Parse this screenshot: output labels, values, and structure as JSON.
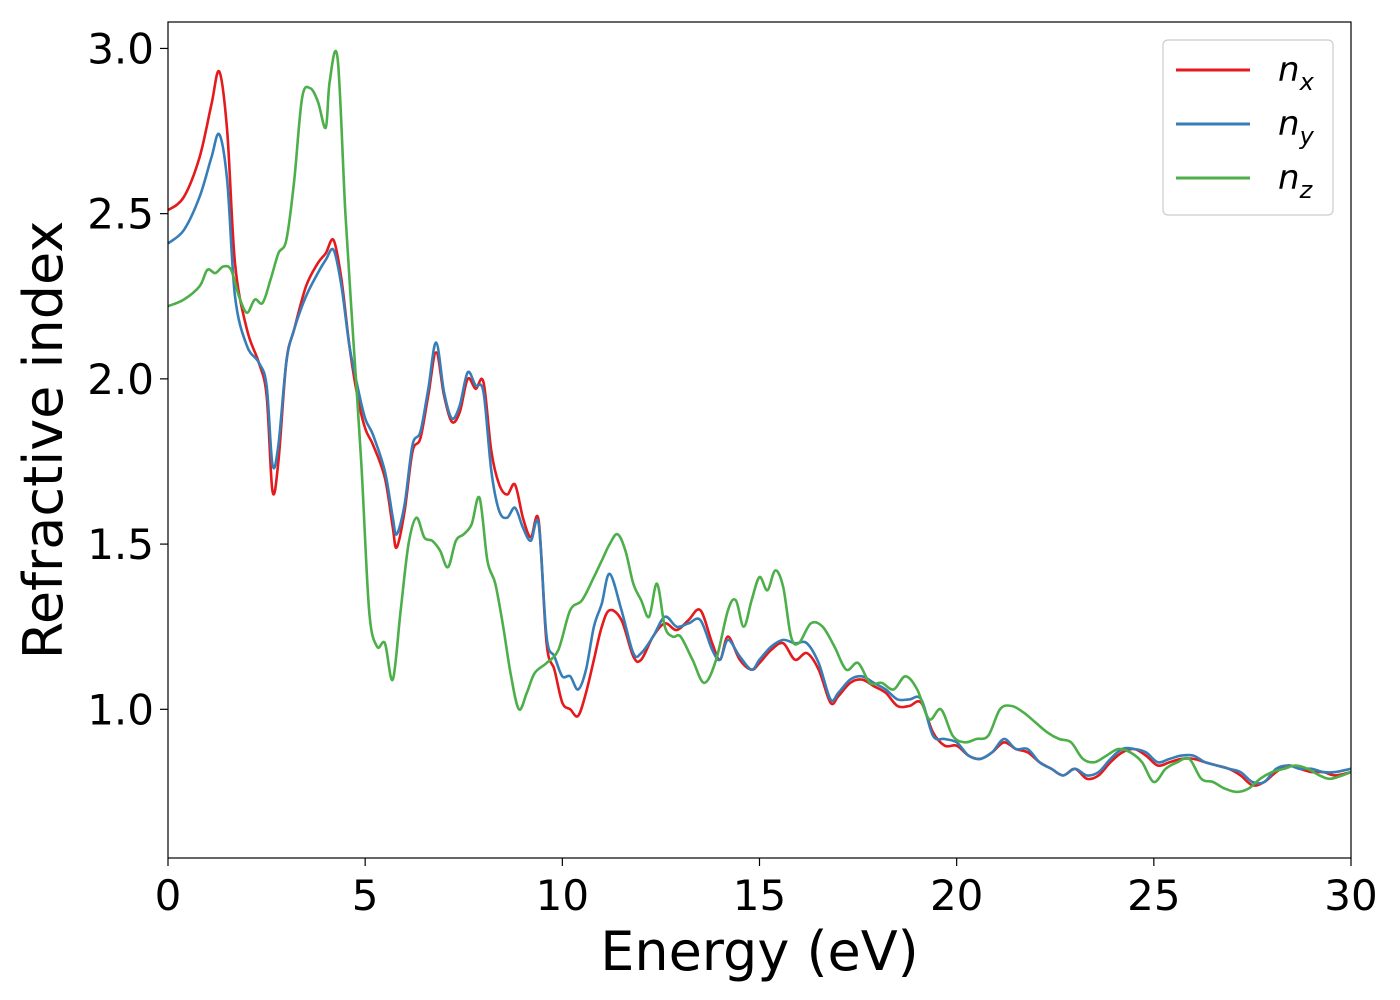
{
  "chart_data": {
    "type": "line",
    "xlabel": "Energy (eV)",
    "ylabel": "Refractive index",
    "xlim": [
      0,
      30
    ],
    "ylim": [
      0.55,
      3.08
    ],
    "xticks": [
      0,
      5,
      10,
      15,
      20,
      25,
      30
    ],
    "xtick_labels": [
      "0",
      "5",
      "10",
      "15",
      "20",
      "25",
      "30"
    ],
    "yticks": [
      1.0,
      1.5,
      2.0,
      2.5,
      3.0
    ],
    "ytick_labels": [
      "1.0",
      "1.5",
      "2.0",
      "2.5",
      "3.0"
    ],
    "grid": false,
    "legend_position": "top-right",
    "series": [
      {
        "name": "n_x",
        "label_base": "n",
        "label_sub": "x",
        "color": "#e41a1c",
        "x": [
          0,
          0.4,
          0.8,
          1.1,
          1.3,
          1.5,
          1.7,
          2.0,
          2.3,
          2.5,
          2.65,
          2.8,
          3.0,
          3.2,
          3.5,
          3.8,
          4.0,
          4.2,
          4.4,
          4.6,
          4.8,
          5.0,
          5.2,
          5.5,
          5.7,
          5.8,
          6.0,
          6.2,
          6.4,
          6.6,
          6.8,
          7.0,
          7.2,
          7.4,
          7.6,
          7.8,
          8.0,
          8.2,
          8.4,
          8.6,
          8.8,
          9.0,
          9.2,
          9.4,
          9.6,
          9.8,
          10.0,
          10.2,
          10.4,
          10.6,
          10.8,
          11.0,
          11.2,
          11.5,
          11.8,
          12.0,
          12.3,
          12.6,
          12.9,
          13.2,
          13.5,
          13.8,
          14.0,
          14.2,
          14.5,
          14.8,
          15.0,
          15.3,
          15.6,
          15.9,
          16.2,
          16.5,
          16.8,
          17.0,
          17.3,
          17.6,
          17.9,
          18.2,
          18.5,
          18.8,
          19.1,
          19.4,
          19.7,
          20.0,
          20.3,
          20.6,
          20.9,
          21.2,
          21.5,
          21.8,
          22.1,
          22.4,
          22.7,
          23.0,
          23.3,
          23.6,
          23.9,
          24.2,
          24.5,
          24.8,
          25.1,
          25.4,
          25.7,
          26.0,
          26.3,
          26.6,
          26.9,
          27.2,
          27.5,
          27.8,
          28.1,
          28.4,
          28.7,
          29.0,
          29.3,
          29.6,
          30.0
        ],
        "y": [
          2.51,
          2.55,
          2.67,
          2.83,
          2.93,
          2.75,
          2.35,
          2.15,
          2.05,
          1.95,
          1.66,
          1.75,
          2.05,
          2.15,
          2.28,
          2.35,
          2.38,
          2.42,
          2.3,
          2.1,
          1.95,
          1.85,
          1.8,
          1.7,
          1.55,
          1.49,
          1.6,
          1.78,
          1.82,
          1.95,
          2.08,
          1.95,
          1.87,
          1.9,
          2.0,
          1.97,
          1.99,
          1.78,
          1.68,
          1.65,
          1.68,
          1.58,
          1.52,
          1.57,
          1.2,
          1.12,
          1.02,
          1.0,
          0.98,
          1.05,
          1.15,
          1.25,
          1.3,
          1.27,
          1.16,
          1.15,
          1.22,
          1.26,
          1.24,
          1.27,
          1.3,
          1.2,
          1.15,
          1.22,
          1.15,
          1.12,
          1.14,
          1.18,
          1.2,
          1.15,
          1.17,
          1.12,
          1.02,
          1.04,
          1.08,
          1.09,
          1.07,
          1.05,
          1.01,
          1.01,
          1.02,
          0.93,
          0.89,
          0.89,
          0.86,
          0.85,
          0.87,
          0.9,
          0.88,
          0.87,
          0.84,
          0.82,
          0.8,
          0.82,
          0.79,
          0.8,
          0.84,
          0.87,
          0.88,
          0.86,
          0.83,
          0.84,
          0.85,
          0.85,
          0.84,
          0.83,
          0.82,
          0.8,
          0.77,
          0.78,
          0.81,
          0.83,
          0.82,
          0.81,
          0.81,
          0.8,
          0.81
        ]
      },
      {
        "name": "n_y",
        "label_base": "n",
        "label_sub": "y",
        "color": "#377eb8",
        "x": [
          0,
          0.4,
          0.8,
          1.1,
          1.3,
          1.5,
          1.7,
          2.0,
          2.3,
          2.5,
          2.65,
          2.8,
          3.0,
          3.2,
          3.5,
          3.8,
          4.0,
          4.2,
          4.4,
          4.6,
          4.8,
          5.0,
          5.2,
          5.5,
          5.7,
          5.8,
          6.0,
          6.2,
          6.4,
          6.6,
          6.8,
          7.0,
          7.2,
          7.4,
          7.6,
          7.8,
          8.0,
          8.2,
          8.4,
          8.6,
          8.8,
          9.0,
          9.2,
          9.4,
          9.6,
          9.8,
          10.0,
          10.2,
          10.4,
          10.6,
          10.8,
          11.0,
          11.2,
          11.5,
          11.8,
          12.0,
          12.3,
          12.6,
          12.9,
          13.2,
          13.5,
          13.8,
          14.0,
          14.2,
          14.5,
          14.8,
          15.0,
          15.3,
          15.6,
          15.9,
          16.2,
          16.5,
          16.8,
          17.0,
          17.3,
          17.6,
          17.9,
          18.2,
          18.5,
          18.8,
          19.1,
          19.4,
          19.7,
          20.0,
          20.3,
          20.6,
          20.9,
          21.2,
          21.5,
          21.8,
          22.1,
          22.4,
          22.7,
          23.0,
          23.3,
          23.6,
          23.9,
          24.2,
          24.5,
          24.8,
          25.1,
          25.4,
          25.7,
          26.0,
          26.3,
          26.6,
          26.9,
          27.2,
          27.5,
          27.8,
          28.1,
          28.4,
          28.7,
          29.0,
          29.3,
          29.6,
          30.0
        ],
        "y": [
          2.41,
          2.45,
          2.55,
          2.67,
          2.74,
          2.6,
          2.25,
          2.1,
          2.05,
          1.98,
          1.74,
          1.8,
          2.05,
          2.15,
          2.25,
          2.32,
          2.36,
          2.39,
          2.28,
          2.1,
          1.98,
          1.88,
          1.83,
          1.72,
          1.58,
          1.53,
          1.62,
          1.8,
          1.84,
          1.97,
          2.11,
          1.96,
          1.88,
          1.92,
          2.02,
          1.98,
          1.96,
          1.72,
          1.6,
          1.58,
          1.61,
          1.55,
          1.51,
          1.56,
          1.22,
          1.16,
          1.1,
          1.1,
          1.06,
          1.12,
          1.25,
          1.32,
          1.41,
          1.3,
          1.17,
          1.17,
          1.22,
          1.28,
          1.25,
          1.26,
          1.27,
          1.18,
          1.15,
          1.21,
          1.16,
          1.12,
          1.15,
          1.19,
          1.21,
          1.2,
          1.2,
          1.14,
          1.03,
          1.05,
          1.09,
          1.1,
          1.08,
          1.06,
          1.03,
          1.03,
          1.03,
          0.92,
          0.91,
          0.9,
          0.86,
          0.85,
          0.87,
          0.91,
          0.88,
          0.88,
          0.84,
          0.82,
          0.8,
          0.82,
          0.8,
          0.81,
          0.85,
          0.88,
          0.88,
          0.87,
          0.84,
          0.85,
          0.86,
          0.86,
          0.84,
          0.83,
          0.82,
          0.81,
          0.78,
          0.78,
          0.82,
          0.83,
          0.82,
          0.82,
          0.81,
          0.81,
          0.82
        ]
      },
      {
        "name": "n_z",
        "label_base": "n",
        "label_sub": "z",
        "color": "#4daf4a",
        "x": [
          0,
          0.4,
          0.8,
          1.0,
          1.2,
          1.4,
          1.6,
          1.8,
          2.0,
          2.2,
          2.4,
          2.6,
          2.8,
          3.0,
          3.2,
          3.4,
          3.6,
          3.8,
          4.0,
          4.1,
          4.3,
          4.5,
          4.7,
          4.9,
          5.1,
          5.3,
          5.5,
          5.7,
          5.9,
          6.1,
          6.3,
          6.5,
          6.7,
          6.9,
          7.1,
          7.3,
          7.5,
          7.7,
          7.9,
          8.1,
          8.3,
          8.5,
          8.7,
          8.9,
          9.1,
          9.3,
          9.6,
          9.9,
          10.2,
          10.5,
          10.8,
          11.0,
          11.2,
          11.4,
          11.6,
          11.8,
          12.0,
          12.2,
          12.4,
          12.6,
          12.8,
          13.0,
          13.3,
          13.6,
          13.9,
          14.2,
          14.4,
          14.6,
          14.8,
          15.0,
          15.2,
          15.4,
          15.6,
          15.8,
          16.0,
          16.3,
          16.6,
          16.9,
          17.2,
          17.5,
          17.8,
          18.1,
          18.4,
          18.7,
          19.0,
          19.3,
          19.6,
          19.9,
          20.2,
          20.5,
          20.8,
          21.1,
          21.4,
          21.7,
          22.0,
          22.3,
          22.6,
          22.9,
          23.2,
          23.5,
          23.8,
          24.1,
          24.4,
          24.7,
          25.0,
          25.3,
          25.6,
          25.9,
          26.2,
          26.5,
          26.8,
          27.1,
          27.4,
          27.7,
          28.0,
          28.3,
          28.6,
          28.9,
          29.2,
          29.5,
          30.0
        ],
        "y": [
          2.22,
          2.24,
          2.28,
          2.33,
          2.32,
          2.34,
          2.33,
          2.25,
          2.2,
          2.24,
          2.23,
          2.3,
          2.38,
          2.42,
          2.6,
          2.85,
          2.88,
          2.84,
          2.76,
          2.9,
          2.97,
          2.5,
          2.12,
          1.75,
          1.3,
          1.19,
          1.2,
          1.09,
          1.3,
          1.5,
          1.58,
          1.52,
          1.51,
          1.48,
          1.43,
          1.51,
          1.53,
          1.56,
          1.64,
          1.45,
          1.38,
          1.25,
          1.1,
          1.0,
          1.05,
          1.11,
          1.14,
          1.18,
          1.3,
          1.33,
          1.4,
          1.45,
          1.5,
          1.53,
          1.48,
          1.38,
          1.33,
          1.28,
          1.38,
          1.25,
          1.22,
          1.22,
          1.15,
          1.08,
          1.15,
          1.3,
          1.33,
          1.25,
          1.33,
          1.4,
          1.36,
          1.42,
          1.37,
          1.22,
          1.2,
          1.26,
          1.25,
          1.19,
          1.12,
          1.14,
          1.08,
          1.08,
          1.06,
          1.1,
          1.06,
          0.97,
          1.0,
          0.92,
          0.9,
          0.91,
          0.92,
          1.0,
          1.01,
          0.99,
          0.96,
          0.93,
          0.91,
          0.9,
          0.85,
          0.84,
          0.86,
          0.88,
          0.87,
          0.84,
          0.78,
          0.82,
          0.84,
          0.85,
          0.79,
          0.78,
          0.76,
          0.75,
          0.76,
          0.79,
          0.81,
          0.82,
          0.83,
          0.82,
          0.8,
          0.79,
          0.81
        ]
      }
    ]
  }
}
